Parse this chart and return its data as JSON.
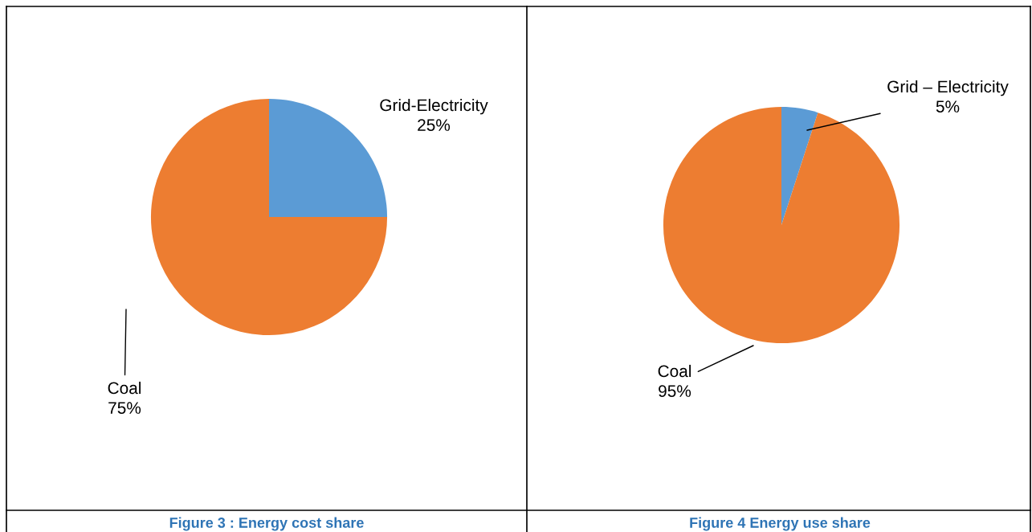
{
  "chart_data": [
    {
      "type": "pie",
      "title": "Figure 3 : Energy cost share",
      "categories": [
        "Grid-Electricity",
        "Coal"
      ],
      "values": [
        25,
        75
      ],
      "value_labels": [
        "25%",
        "75%"
      ],
      "colors": [
        "#5b9bd5",
        "#ed7d31"
      ]
    },
    {
      "type": "pie",
      "title": "Figure 4 Energy use share",
      "categories": [
        "Grid – Electricity",
        "Coal"
      ],
      "values": [
        5,
        95
      ],
      "value_labels": [
        "5%",
        "95%"
      ],
      "colors": [
        "#5b9bd5",
        "#ed7d31"
      ]
    }
  ]
}
